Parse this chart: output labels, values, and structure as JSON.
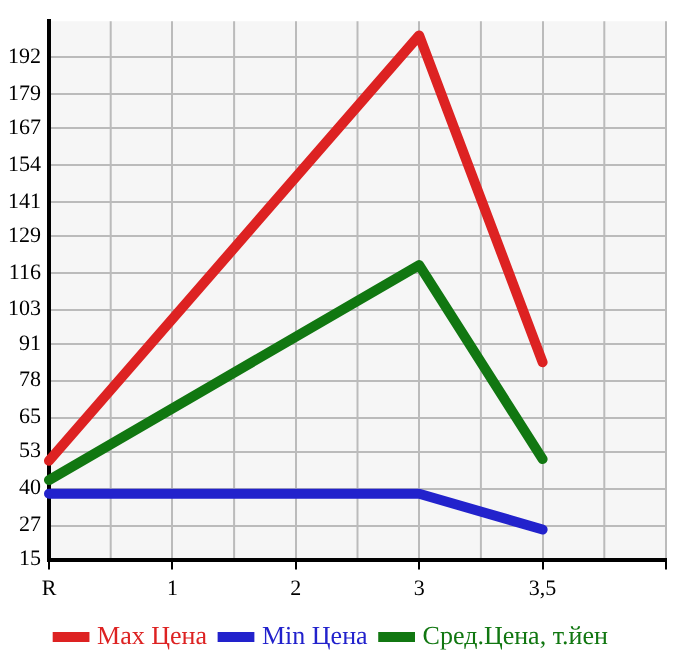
{
  "chart_data": {
    "type": "line",
    "categories": [
      "R",
      "1",
      "2",
      "3",
      "3,5",
      null
    ],
    "series": [
      {
        "name": "Max Цена",
        "color": "#dd2222",
        "values": [
          49.8,
          null,
          null,
          199.6,
          84.5,
          null
        ]
      },
      {
        "name": "Min Цена",
        "color": "#2222cc",
        "values": [
          38.2,
          null,
          null,
          38.2,
          25.6,
          null
        ]
      },
      {
        "name": "Сред.Цена, т.йен",
        "color": "#117711",
        "values": [
          43,
          null,
          null,
          118.7,
          50.4,
          null
        ]
      }
    ],
    "ylim": [
      15,
      204.6
    ],
    "yticks": [
      15,
      27,
      40,
      53,
      65,
      78,
      91,
      103,
      116,
      129,
      141,
      154,
      167,
      179,
      192
    ],
    "grid": true,
    "legend": "bottom",
    "marker": "none",
    "line_style": "solid"
  }
}
